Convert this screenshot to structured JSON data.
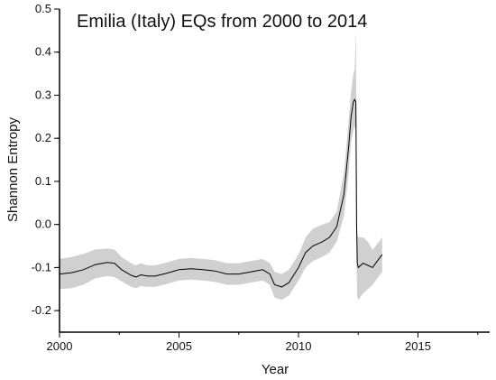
{
  "chart_data": {
    "type": "line",
    "title": "Emilia (Italy) EQs from 2000 to 2014",
    "xlabel": "Year",
    "ylabel": "Shannon Entropy",
    "xlim": [
      2000,
      2018
    ],
    "ylim": [
      -0.25,
      0.5
    ],
    "xticks": [
      2000,
      2005,
      2010,
      2015
    ],
    "yticks": [
      -0.2,
      -0.1,
      0.0,
      0.1,
      0.2,
      0.3,
      0.4,
      0.5
    ],
    "ytick_labels": [
      "-0.2",
      "-0.1",
      "0.0",
      "0.1",
      "0.2",
      "0.3",
      "0.4",
      "0.5"
    ],
    "grid": false,
    "colors": {
      "line": "#000000",
      "band": "#d0d0d0"
    },
    "series": [
      {
        "x": [
          2000.0,
          2000.5,
          2001.0,
          2001.5,
          2002.0,
          2002.3,
          2002.6,
          2003.0,
          2003.2,
          2003.4,
          2003.7,
          2004.0,
          2004.5,
          2005.0,
          2005.5,
          2006.0,
          2006.5,
          2007.0,
          2007.5,
          2008.0,
          2008.5,
          2008.8,
          2009.0,
          2009.3,
          2009.6,
          2010.0,
          2010.3,
          2010.6,
          2011.0,
          2011.3,
          2011.6,
          2011.9,
          2012.1,
          2012.2,
          2012.3,
          2012.35,
          2012.4,
          2012.43,
          2012.46,
          2012.5,
          2012.7,
          2012.9,
          2013.1,
          2013.3,
          2013.5
        ],
        "y": [
          -0.115,
          -0.112,
          -0.105,
          -0.093,
          -0.088,
          -0.09,
          -0.105,
          -0.118,
          -0.122,
          -0.117,
          -0.12,
          -0.12,
          -0.113,
          -0.105,
          -0.103,
          -0.105,
          -0.108,
          -0.115,
          -0.115,
          -0.11,
          -0.105,
          -0.115,
          -0.14,
          -0.145,
          -0.135,
          -0.1,
          -0.065,
          -0.05,
          -0.04,
          -0.03,
          -0.005,
          0.07,
          0.18,
          0.25,
          0.285,
          0.29,
          0.285,
          0.0,
          -0.09,
          -0.1,
          -0.09,
          -0.095,
          -0.1,
          -0.085,
          -0.07
        ],
        "lower": [
          -0.15,
          -0.148,
          -0.14,
          -0.125,
          -0.12,
          -0.122,
          -0.132,
          -0.145,
          -0.148,
          -0.143,
          -0.145,
          -0.145,
          -0.138,
          -0.13,
          -0.128,
          -0.13,
          -0.133,
          -0.14,
          -0.14,
          -0.135,
          -0.13,
          -0.14,
          -0.17,
          -0.175,
          -0.165,
          -0.13,
          -0.1,
          -0.085,
          -0.075,
          -0.065,
          -0.04,
          0.02,
          0.12,
          0.19,
          0.22,
          0.23,
          0.22,
          -0.1,
          -0.17,
          -0.175,
          -0.16,
          -0.15,
          -0.14,
          -0.125,
          -0.11
        ],
        "upper": [
          -0.08,
          -0.076,
          -0.068,
          -0.058,
          -0.056,
          -0.058,
          -0.076,
          -0.09,
          -0.095,
          -0.09,
          -0.095,
          -0.095,
          -0.088,
          -0.08,
          -0.078,
          -0.08,
          -0.083,
          -0.09,
          -0.09,
          -0.085,
          -0.08,
          -0.09,
          -0.11,
          -0.115,
          -0.105,
          -0.07,
          -0.03,
          -0.01,
          0.0,
          0.005,
          0.03,
          0.12,
          0.24,
          0.31,
          0.35,
          0.36,
          0.45,
          0.2,
          -0.02,
          -0.03,
          -0.03,
          -0.04,
          -0.06,
          -0.045,
          -0.03
        ]
      }
    ]
  }
}
